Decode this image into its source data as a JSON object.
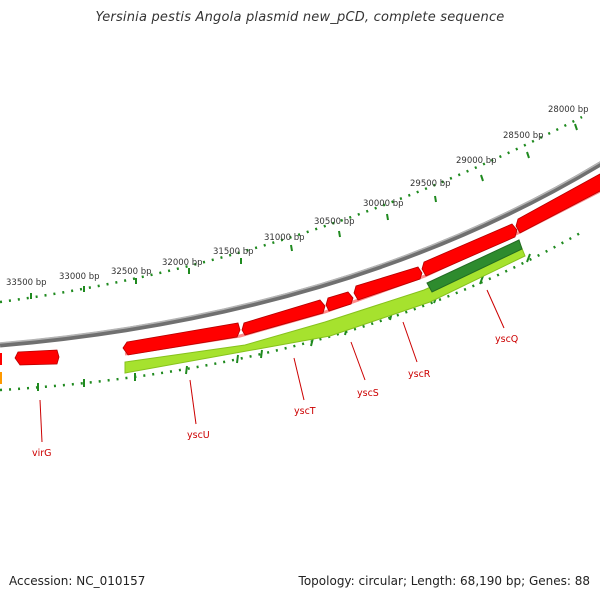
{
  "title": "Yersinia pestis Angola plasmid new_pCD, complete sequence",
  "footer": {
    "accession": "Accession: NC_010157",
    "summary": "Topology: circular; Length: 68,190 bp; Genes: 88"
  },
  "colors": {
    "backbone": "#8c8c8c",
    "forward_gene": "#ff0000",
    "reverse_gene": "#a6e22e",
    "reverse_gene_dark": "#2e8b2e",
    "tick": "#1f8a1f",
    "tick_label": "#333333",
    "gene_label": "#cc0000",
    "orange_marker": "#ff9900"
  },
  "scale_labels": [
    "28000 bp",
    "28500 bp",
    "29000 bp",
    "29500 bp",
    "30000 bp",
    "30500 bp",
    "31000 bp",
    "31500 bp",
    "32000 bp",
    "32500 bp",
    "33000 bp",
    "33500 bp"
  ],
  "gene_labels": [
    "yscQ",
    "yscR",
    "yscS",
    "yscT",
    "yscU",
    "virG"
  ]
}
